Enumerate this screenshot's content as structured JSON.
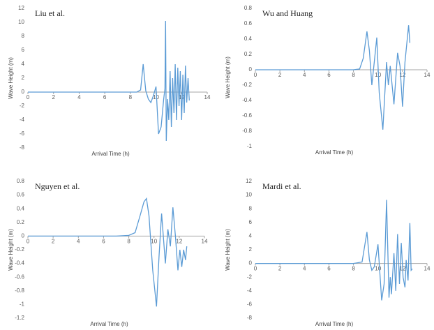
{
  "chart_data": [
    {
      "type": "line",
      "title": "Liu et al.",
      "x_label": "Arrival Time (h)",
      "y_label": "Wave Height (m)",
      "color": "#5b9bd5",
      "x": [
        0,
        1,
        2,
        3,
        4,
        5,
        6,
        7,
        7.5,
        8,
        8.5,
        8.8,
        9.0,
        9.2,
        9.4,
        9.6,
        9.8,
        10.0,
        10.2,
        10.4,
        10.6,
        10.7,
        10.75,
        10.8,
        10.9,
        11.0,
        11.1,
        11.2,
        11.3,
        11.4,
        11.5,
        11.6,
        11.7,
        11.8,
        11.9,
        12.0,
        12.1,
        12.2,
        12.3,
        12.4,
        12.5,
        12.6
      ],
      "values": [
        0,
        0,
        0,
        0,
        0,
        0,
        0,
        0,
        0,
        0,
        0,
        0.3,
        4,
        0.2,
        -1,
        -1.5,
        -0.5,
        0.8,
        -6,
        -5,
        -1,
        0.5,
        10.2,
        -7,
        -1,
        -4,
        3,
        -5,
        2,
        -3,
        4,
        -4,
        3.5,
        -2,
        3,
        -4,
        2.5,
        -3,
        3.8,
        -1.5,
        2,
        -1.2
      ],
      "xlim": [
        0,
        14
      ],
      "ylim": [
        -8,
        12
      ],
      "xticks": [
        0,
        2,
        4,
        6,
        8,
        10,
        12,
        14
      ],
      "yticks": [
        -8,
        -6,
        -4,
        -2,
        0,
        2,
        4,
        6,
        8,
        10,
        12
      ]
    },
    {
      "type": "line",
      "title": "Wu and Huang",
      "x_label": "Arrival Time (h)",
      "y_label": "Wave Height (m)",
      "color": "#5b9bd5",
      "x": [
        0,
        1,
        2,
        3,
        4,
        5,
        6,
        7,
        8,
        8.5,
        8.8,
        9.1,
        9.3,
        9.5,
        9.7,
        9.9,
        10.1,
        10.4,
        10.7,
        10.85,
        11.0,
        11.3,
        11.6,
        11.8,
        12.0,
        12.2,
        12.5,
        12.6
      ],
      "values": [
        0,
        0,
        0,
        0,
        0,
        0,
        0,
        0,
        0,
        0.01,
        0.15,
        0.5,
        0.25,
        -0.2,
        0.1,
        0.42,
        -0.3,
        -0.78,
        0.1,
        -0.2,
        0.05,
        -0.45,
        0.22,
        0.05,
        -0.48,
        0.1,
        0.58,
        0.35
      ],
      "xlim": [
        0,
        14
      ],
      "ylim": [
        -1,
        0.8
      ],
      "xticks": [
        0,
        2,
        4,
        6,
        8,
        10,
        12,
        14
      ],
      "yticks": [
        -1,
        -0.8,
        -0.6,
        -0.4,
        -0.2,
        0,
        0.2,
        0.4,
        0.6,
        0.8
      ]
    },
    {
      "type": "line",
      "title": "Nguyen et al.",
      "x_label": "Arrival Time (h)",
      "y_label": "Wave Height (m)",
      "color": "#5b9bd5",
      "x": [
        0,
        1,
        2,
        3,
        4,
        5,
        6,
        7,
        8,
        8.5,
        8.9,
        9.2,
        9.4,
        9.6,
        9.9,
        10.2,
        10.4,
        10.6,
        10.9,
        11.1,
        11.3,
        11.5,
        11.7,
        11.9,
        12.05,
        12.2,
        12.35,
        12.5,
        12.6
      ],
      "values": [
        0,
        0,
        0,
        0,
        0,
        0,
        0,
        0,
        0.01,
        0.05,
        0.3,
        0.5,
        0.55,
        0.3,
        -0.5,
        -1.03,
        -0.3,
        0.33,
        -0.4,
        0.1,
        -0.15,
        0.42,
        0,
        -0.5,
        -0.2,
        -0.45,
        -0.2,
        -0.35,
        -0.15
      ],
      "xlim": [
        0,
        14
      ],
      "ylim": [
        -1.2,
        0.8
      ],
      "xticks": [
        0,
        2,
        4,
        6,
        8,
        10,
        12,
        14
      ],
      "yticks": [
        -1.2,
        -1,
        -0.8,
        -0.6,
        -0.4,
        -0.2,
        0,
        0.2,
        0.4,
        0.6,
        0.8
      ]
    },
    {
      "type": "line",
      "title": "Mardi et al.",
      "x_label": "Arrival Time (h)",
      "y_label": "Wave Height (m)",
      "color": "#5b9bd5",
      "x": [
        0,
        1,
        2,
        3,
        4,
        5,
        6,
        7,
        8,
        8.7,
        9.1,
        9.3,
        9.5,
        9.7,
        10.0,
        10.3,
        10.5,
        10.7,
        10.9,
        11.0,
        11.1,
        11.3,
        11.45,
        11.6,
        11.75,
        11.9,
        12.05,
        12.2,
        12.3,
        12.45,
        12.6,
        12.7,
        12.8
      ],
      "values": [
        0,
        0,
        0,
        0,
        0,
        0,
        0,
        0,
        0,
        0.2,
        4.6,
        0.5,
        -1,
        -0.5,
        2.8,
        -5.4,
        -3,
        9.3,
        -5,
        -2,
        -4.5,
        1.5,
        -4,
        4.3,
        -3,
        3,
        -2,
        -3.5,
        0.5,
        -2.5,
        5.9,
        -1,
        -0.8
      ],
      "xlim": [
        0,
        14
      ],
      "ylim": [
        -8,
        12
      ],
      "xticks": [
        0,
        2,
        4,
        6,
        8,
        10,
        12,
        14
      ],
      "yticks": [
        -8,
        -6,
        -4,
        -2,
        0,
        2,
        4,
        6,
        8,
        10,
        12
      ]
    }
  ]
}
